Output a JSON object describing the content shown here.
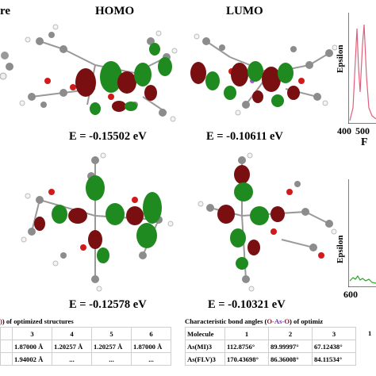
{
  "headers": {
    "left_partial": "re",
    "homo": "HOMO",
    "lumo": "LUMO"
  },
  "energies": {
    "top_homo": "E = -0.15502 eV",
    "top_lumo": "E = -0.10611 eV",
    "bottom_homo": "E = -0.12578 eV",
    "bottom_lumo": "E = -0.10321 eV"
  },
  "spectra": {
    "top": {
      "ylabel": "Epsilon",
      "xticks": [
        "400",
        "500"
      ],
      "xlabel_partial": "F",
      "line_color": "#e0607a"
    },
    "bottom": {
      "ylabel": "Epsilon",
      "xticks": [
        "600"
      ],
      "line_color": "#2aa52a"
    }
  },
  "table_left": {
    "caption_partial": ") of optimized structures",
    "columns": [
      "3",
      "4",
      "5",
      "6"
    ],
    "rows": [
      [
        "1.87000 Å",
        "1.20257 Å",
        "1.20257 Å",
        "1.87000 Å"
      ],
      [
        "1.94002 Å",
        "...",
        "...",
        "..."
      ]
    ]
  },
  "table_right": {
    "caption_prefix": "Characteristic bond angles (",
    "caption_o1": "O",
    "caption_dash1": "-",
    "caption_as": "As",
    "caption_dash2": "-",
    "caption_o2": "O",
    "caption_suffix": ") of optimiz",
    "columns": [
      "Molecule",
      "1",
      "2",
      "3"
    ],
    "rows": [
      [
        "As(MI)3",
        "112.8756°",
        "89.99997°",
        "67.12438°"
      ],
      [
        "As(FLV)3",
        "170.43698°",
        "86.36008°",
        "84.11534°"
      ]
    ],
    "trailing_partial": "1"
  },
  "colors": {
    "orbital_red": "#7a0f12",
    "orbital_green": "#1f8a1f",
    "carbon": "#8c8c8c",
    "oxygen": "#d11a1a",
    "hydrogen": "#f2f2f2"
  }
}
